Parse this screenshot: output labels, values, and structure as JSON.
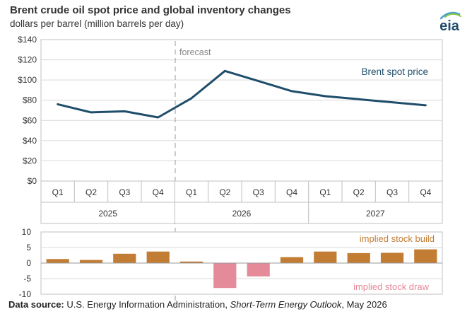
{
  "header": {
    "title": "Brent crude oil spot price and global inventory changes",
    "subtitle": "dollars per barrel (million barrels per day)",
    "logo_text": "eia"
  },
  "footer": {
    "label": "Data source:",
    "source": "U.S. Energy Information Administration,",
    "publication": "Short-Term Energy Outlook",
    "date": ", May 2026"
  },
  "chart_data": [
    {
      "type": "line",
      "categories": [
        "Q1",
        "Q2",
        "Q3",
        "Q4",
        "Q1",
        "Q2",
        "Q3",
        "Q4",
        "Q1",
        "Q2",
        "Q3",
        "Q4"
      ],
      "groups": [
        {
          "label": "2025",
          "span": 4
        },
        {
          "label": "2026",
          "span": 4
        },
        {
          "label": "2027",
          "span": 4
        }
      ],
      "series": [
        {
          "name": "Brent spot price",
          "color": "#1f4e6b",
          "values": [
            76,
            68,
            69,
            63,
            82,
            109,
            99,
            89,
            84,
            81,
            78,
            75
          ]
        }
      ],
      "ylim": [
        0,
        140
      ],
      "yticks": [
        0,
        20,
        40,
        60,
        80,
        100,
        120,
        140
      ],
      "ytick_labels": [
        "$0",
        "$20",
        "$40",
        "$60",
        "$80",
        "$100",
        "$120",
        "$140"
      ],
      "annotation": "forecast",
      "forecast_after_index": 3,
      "grid": true
    },
    {
      "type": "bar",
      "categories": [
        "Q1",
        "Q2",
        "Q3",
        "Q4",
        "Q1",
        "Q2",
        "Q3",
        "Q4",
        "Q1",
        "Q2",
        "Q3",
        "Q4"
      ],
      "values": [
        1.3,
        1.0,
        3.0,
        3.7,
        0.5,
        -8.0,
        -4.3,
        1.9,
        3.7,
        3.2,
        3.3,
        4.4
      ],
      "ylim": [
        -10,
        10
      ],
      "yticks": [
        10,
        5,
        0,
        -5,
        -10
      ],
      "ytick_labels": [
        "10",
        "5",
        "0",
        "-5",
        "-10"
      ],
      "positive_color": "#c27c33",
      "negative_color": "#e58a99",
      "labels": {
        "positive": "implied stock build",
        "negative": "implied stock draw"
      }
    }
  ]
}
